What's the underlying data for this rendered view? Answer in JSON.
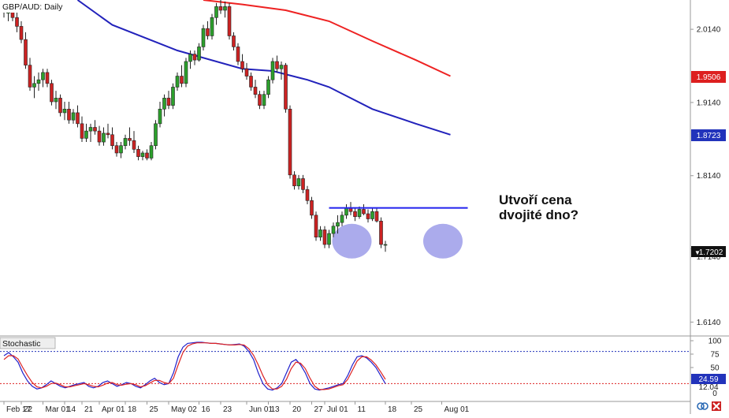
{
  "chart_data": [
    {
      "type": "candlestick",
      "title": "GBP/AUD: Daily",
      "ylim": [
        1.595,
        2.054
      ],
      "price_ticks": [
        2.014,
        1.914,
        1.814,
        1.714,
        1.614
      ],
      "price_tick_labels": [
        "2.0140",
        "1.9140",
        "1.8140",
        "1.7140",
        "1.6140"
      ],
      "x_tick_labels": [
        "Feb 17",
        "22",
        "Mar 01",
        "14",
        "21",
        "Apr 01",
        "18",
        "25",
        "May 02",
        "16",
        "23",
        "Jun 01",
        "13",
        "20",
        "27",
        "Jul 01",
        "11",
        "18",
        "25",
        "Aug 01"
      ],
      "x_tick_index": [
        0,
        4,
        9,
        14,
        18,
        22,
        28,
        33,
        38,
        45,
        50,
        56,
        61,
        66,
        71,
        74,
        81,
        88,
        94,
        101
      ],
      "colors": {
        "up": "#2ca02c",
        "down": "#cc2222",
        "ma_fast": "#2222bb",
        "ma_slow": "#ee2222",
        "neckline": "#2222ee",
        "circle": "#8f8fe6"
      },
      "moving_averages": [
        {
          "color": "#2222bb",
          "points": [
            [
              17,
              2.054
            ],
            [
              25,
              2.02
            ],
            [
              40,
              1.985
            ],
            [
              55,
              1.96
            ],
            [
              62,
              1.957
            ],
            [
              70,
              1.945
            ],
            [
              75,
              1.935
            ],
            [
              85,
              1.905
            ],
            [
              95,
              1.885
            ],
            [
              103,
              1.87
            ]
          ]
        },
        {
          "color": "#ee2222",
          "points": [
            [
              46,
              2.054
            ],
            [
              55,
              2.048
            ],
            [
              65,
              2.04
            ],
            [
              75,
              2.025
            ],
            [
              85,
              1.998
            ],
            [
              95,
              1.972
            ],
            [
              103,
              1.95
            ]
          ]
        }
      ],
      "neckline": {
        "value": 1.77,
        "from_index": 75,
        "to_index": 107
      },
      "ohlc": [
        [
          2.045,
          2.052,
          2.03,
          2.037
        ],
        [
          2.036,
          2.048,
          2.025,
          2.04
        ],
        [
          2.04,
          2.052,
          2.025,
          2.03
        ],
        [
          2.03,
          2.04,
          2.01,
          2.018
        ],
        [
          2.018,
          2.025,
          1.995,
          2.0
        ],
        [
          2.0,
          2.01,
          1.96,
          1.965
        ],
        [
          1.965,
          1.975,
          1.93,
          1.935
        ],
        [
          1.935,
          1.95,
          1.92,
          1.94
        ],
        [
          1.94,
          1.955,
          1.93,
          1.945
        ],
        [
          1.945,
          1.96,
          1.935,
          1.955
        ],
        [
          1.955,
          1.96,
          1.935,
          1.94
        ],
        [
          1.94,
          1.945,
          1.91,
          1.915
        ],
        [
          1.915,
          1.93,
          1.905,
          1.92
        ],
        [
          1.92,
          1.925,
          1.895,
          1.9
        ],
        [
          1.9,
          1.915,
          1.89,
          1.905
        ],
        [
          1.905,
          1.915,
          1.885,
          1.89
        ],
        [
          1.89,
          1.905,
          1.885,
          1.9
        ],
        [
          1.9,
          1.91,
          1.88,
          1.885
        ],
        [
          1.885,
          1.895,
          1.86,
          1.865
        ],
        [
          1.865,
          1.885,
          1.86,
          1.875
        ],
        [
          1.875,
          1.885,
          1.86,
          1.88
        ],
        [
          1.88,
          1.89,
          1.87,
          1.875
        ],
        [
          1.875,
          1.882,
          1.855,
          1.86
        ],
        [
          1.86,
          1.88,
          1.855,
          1.872
        ],
        [
          1.872,
          1.885,
          1.865,
          1.87
        ],
        [
          1.87,
          1.88,
          1.85,
          1.855
        ],
        [
          1.855,
          1.86,
          1.84,
          1.845
        ],
        [
          1.845,
          1.86,
          1.838,
          1.855
        ],
        [
          1.855,
          1.87,
          1.85,
          1.865
        ],
        [
          1.865,
          1.88,
          1.855,
          1.862
        ],
        [
          1.862,
          1.875,
          1.845,
          1.85
        ],
        [
          1.85,
          1.855,
          1.835,
          1.84
        ],
        [
          1.84,
          1.848,
          1.835,
          1.845
        ],
        [
          1.845,
          1.85,
          1.835,
          1.838
        ],
        [
          1.838,
          1.86,
          1.835,
          1.855
        ],
        [
          1.855,
          1.89,
          1.85,
          1.885
        ],
        [
          1.885,
          1.915,
          1.88,
          1.905
        ],
        [
          1.905,
          1.925,
          1.895,
          1.92
        ],
        [
          1.92,
          1.93,
          1.905,
          1.91
        ],
        [
          1.91,
          1.94,
          1.905,
          1.935
        ],
        [
          1.935,
          1.955,
          1.93,
          1.95
        ],
        [
          1.95,
          1.965,
          1.935,
          1.94
        ],
        [
          1.94,
          1.975,
          1.935,
          1.97
        ],
        [
          1.97,
          1.985,
          1.96,
          1.98
        ],
        [
          1.98,
          1.985,
          1.965,
          1.972
        ],
        [
          1.972,
          1.995,
          1.97,
          1.99
        ],
        [
          1.99,
          2.02,
          1.985,
          2.015
        ],
        [
          2.015,
          2.025,
          2.0,
          2.005
        ],
        [
          2.005,
          2.035,
          2.0,
          2.03
        ],
        [
          2.03,
          2.05,
          2.02,
          2.045
        ],
        [
          2.045,
          2.054,
          2.035,
          2.04
        ],
        [
          2.04,
          2.052,
          2.03,
          2.045
        ],
        [
          2.045,
          2.05,
          2.0,
          2.005
        ],
        [
          2.005,
          2.01,
          1.985,
          1.99
        ],
        [
          1.99,
          1.995,
          1.965,
          1.97
        ],
        [
          1.97,
          1.98,
          1.955,
          1.96
        ],
        [
          1.96,
          1.968,
          1.945,
          1.95
        ],
        [
          1.95,
          1.955,
          1.93,
          1.935
        ],
        [
          1.935,
          1.945,
          1.92,
          1.925
        ],
        [
          1.925,
          1.93,
          1.905,
          1.91
        ],
        [
          1.91,
          1.93,
          1.905,
          1.925
        ],
        [
          1.925,
          1.95,
          1.92,
          1.945
        ],
        [
          1.945,
          1.975,
          1.94,
          1.97
        ],
        [
          1.97,
          1.978,
          1.955,
          1.96
        ],
        [
          1.96,
          1.97,
          1.945,
          1.965
        ],
        [
          1.965,
          1.968,
          1.9,
          1.905
        ],
        [
          1.905,
          1.91,
          1.81,
          1.815
        ],
        [
          1.815,
          1.82,
          1.795,
          1.8
        ],
        [
          1.8,
          1.815,
          1.795,
          1.81
        ],
        [
          1.81,
          1.815,
          1.79,
          1.795
        ],
        [
          1.795,
          1.8,
          1.775,
          1.78
        ],
        [
          1.78,
          1.785,
          1.755,
          1.76
        ],
        [
          1.76,
          1.765,
          1.725,
          1.73
        ],
        [
          1.73,
          1.745,
          1.725,
          1.74
        ],
        [
          1.74,
          1.745,
          1.715,
          1.72
        ],
        [
          1.72,
          1.74,
          1.715,
          1.735
        ],
        [
          1.735,
          1.75,
          1.73,
          1.745
        ],
        [
          1.745,
          1.76,
          1.735,
          1.75
        ],
        [
          1.75,
          1.765,
          1.745,
          1.76
        ],
        [
          1.76,
          1.775,
          1.755,
          1.77
        ],
        [
          1.77,
          1.778,
          1.76,
          1.765
        ],
        [
          1.765,
          1.77,
          1.752,
          1.758
        ],
        [
          1.758,
          1.772,
          1.755,
          1.768
        ],
        [
          1.768,
          1.775,
          1.76,
          1.762
        ],
        [
          1.762,
          1.768,
          1.75,
          1.755
        ],
        [
          1.755,
          1.77,
          1.752,
          1.765
        ],
        [
          1.765,
          1.77,
          1.75,
          1.752
        ],
        [
          1.752,
          1.757,
          1.715,
          1.72
        ],
        [
          1.72,
          1.725,
          1.71,
          1.72
        ]
      ]
    },
    {
      "type": "line",
      "title": "Stochastic",
      "ylim": [
        0,
        100
      ],
      "y_ticks": [
        100,
        75,
        50,
        25,
        0
      ],
      "y_tick_labels": [
        "100",
        "75",
        "50",
        "25",
        "0"
      ],
      "levels": [
        80,
        20
      ],
      "series": [
        {
          "color": "#2222cc",
          "values": [
            72,
            78,
            70,
            60,
            40,
            25,
            15,
            10,
            12,
            18,
            25,
            20,
            15,
            12,
            15,
            18,
            20,
            22,
            15,
            12,
            15,
            22,
            25,
            20,
            15,
            18,
            22,
            20,
            15,
            12,
            18,
            25,
            30,
            22,
            18,
            20,
            40,
            70,
            88,
            95,
            96,
            97,
            97,
            96,
            95,
            95,
            94,
            93,
            92,
            93,
            94,
            90,
            80,
            65,
            40,
            20,
            10,
            8,
            12,
            20,
            40,
            60,
            65,
            55,
            40,
            20,
            10,
            8,
            10,
            12,
            15,
            18,
            20,
            35,
            55,
            70,
            72,
            68,
            60,
            50,
            35,
            20
          ]
        },
        {
          "color": "#dd2222",
          "values": [
            65,
            72,
            72,
            66,
            50,
            35,
            22,
            14,
            12,
            15,
            20,
            21,
            18,
            14,
            14,
            16,
            18,
            20,
            18,
            15,
            14,
            17,
            21,
            22,
            18,
            17,
            19,
            20,
            18,
            14,
            16,
            21,
            26,
            26,
            22,
            20,
            30,
            55,
            78,
            90,
            94,
            96,
            96,
            96,
            95,
            95,
            94,
            93,
            92,
            92,
            93,
            92,
            85,
            73,
            55,
            35,
            18,
            10,
            10,
            15,
            28,
            48,
            60,
            58,
            48,
            30,
            15,
            9,
            9,
            10,
            13,
            16,
            18,
            28,
            45,
            62,
            70,
            70,
            64,
            55,
            42,
            28
          ]
        }
      ]
    }
  ],
  "title": "GBP/AUD: Daily",
  "price_axis": {
    "ma_slow_tag": "1.9506",
    "ma_fast_tag": "1.8723",
    "last_price_tag": "1.7202",
    "hidden_tick_fragment": "1.7140"
  },
  "stoch": {
    "title": "Stochastic",
    "value_tag": "24.59",
    "value_tag_2": "12.04"
  },
  "annotation": {
    "line1": "Utvoří cena",
    "line2": "dvojité dno?"
  },
  "icons": {
    "link": "link-icon",
    "logo": "brand-logo-icon"
  }
}
